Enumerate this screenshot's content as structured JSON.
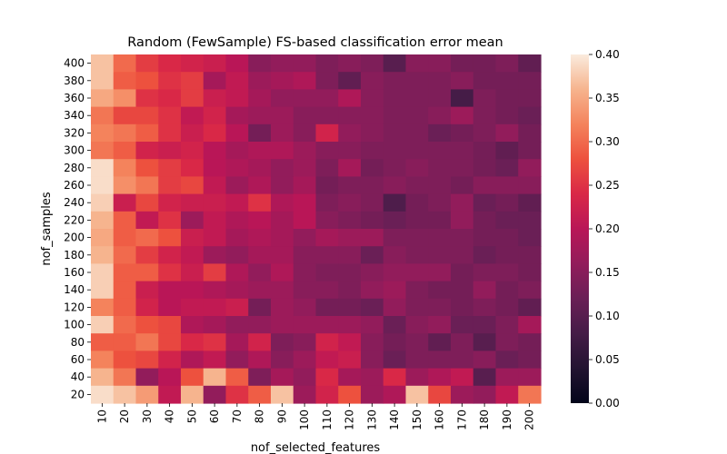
{
  "chart_data": {
    "type": "heatmap",
    "title": "Random (FewSample) FS-based classification error mean",
    "xlabel": "nof_selected_features",
    "ylabel": "nof_samples",
    "x_categories": [
      "10",
      "20",
      "30",
      "40",
      "50",
      "60",
      "70",
      "80",
      "90",
      "100",
      "110",
      "120",
      "130",
      "140",
      "150",
      "160",
      "170",
      "180",
      "190",
      "200"
    ],
    "y_categories": [
      "400",
      "380",
      "360",
      "340",
      "320",
      "300",
      "280",
      "260",
      "240",
      "220",
      "200",
      "180",
      "160",
      "140",
      "120",
      "100",
      "80",
      "60",
      "40",
      "20"
    ],
    "colorbar": {
      "vmin": 0.0,
      "vmax": 0.4,
      "ticks": [
        "0.00",
        "0.05",
        "0.10",
        "0.15",
        "0.20",
        "0.25",
        "0.30",
        "0.35",
        "0.40"
      ]
    },
    "values": [
      [
        0.37,
        0.3,
        0.26,
        0.24,
        0.23,
        0.22,
        0.2,
        0.15,
        0.16,
        0.16,
        0.14,
        0.15,
        0.14,
        0.1,
        0.15,
        0.15,
        0.13,
        0.13,
        0.14,
        0.11
      ],
      [
        0.37,
        0.29,
        0.28,
        0.25,
        0.26,
        0.18,
        0.21,
        0.17,
        0.18,
        0.19,
        0.14,
        0.11,
        0.15,
        0.14,
        0.14,
        0.14,
        0.15,
        0.13,
        0.13,
        0.13
      ],
      [
        0.35,
        0.33,
        0.25,
        0.24,
        0.26,
        0.22,
        0.21,
        0.18,
        0.16,
        0.16,
        0.16,
        0.19,
        0.15,
        0.14,
        0.14,
        0.14,
        0.08,
        0.14,
        0.13,
        0.13
      ],
      [
        0.31,
        0.27,
        0.27,
        0.25,
        0.21,
        0.23,
        0.18,
        0.17,
        0.17,
        0.15,
        0.15,
        0.15,
        0.15,
        0.14,
        0.14,
        0.15,
        0.17,
        0.14,
        0.13,
        0.12
      ],
      [
        0.32,
        0.31,
        0.29,
        0.25,
        0.22,
        0.24,
        0.2,
        0.13,
        0.17,
        0.15,
        0.23,
        0.16,
        0.15,
        0.14,
        0.14,
        0.12,
        0.13,
        0.14,
        0.16,
        0.13
      ],
      [
        0.31,
        0.29,
        0.23,
        0.22,
        0.23,
        0.2,
        0.18,
        0.19,
        0.19,
        0.17,
        0.15,
        0.15,
        0.14,
        0.14,
        0.14,
        0.14,
        0.14,
        0.13,
        0.11,
        0.13
      ],
      [
        0.39,
        0.32,
        0.28,
        0.26,
        0.24,
        0.2,
        0.19,
        0.18,
        0.16,
        0.17,
        0.14,
        0.18,
        0.13,
        0.14,
        0.15,
        0.14,
        0.14,
        0.13,
        0.12,
        0.16
      ],
      [
        0.39,
        0.33,
        0.31,
        0.26,
        0.27,
        0.21,
        0.17,
        0.19,
        0.16,
        0.18,
        0.13,
        0.14,
        0.14,
        0.15,
        0.14,
        0.14,
        0.13,
        0.15,
        0.15,
        0.15
      ],
      [
        0.38,
        0.22,
        0.27,
        0.23,
        0.22,
        0.22,
        0.21,
        0.25,
        0.19,
        0.2,
        0.14,
        0.15,
        0.14,
        0.09,
        0.13,
        0.14,
        0.16,
        0.12,
        0.13,
        0.11
      ],
      [
        0.36,
        0.29,
        0.21,
        0.25,
        0.17,
        0.21,
        0.19,
        0.2,
        0.18,
        0.2,
        0.15,
        0.14,
        0.13,
        0.12,
        0.13,
        0.13,
        0.16,
        0.13,
        0.12,
        0.12
      ],
      [
        0.35,
        0.29,
        0.3,
        0.28,
        0.22,
        0.21,
        0.18,
        0.19,
        0.18,
        0.16,
        0.18,
        0.17,
        0.17,
        0.14,
        0.14,
        0.14,
        0.14,
        0.13,
        0.13,
        0.12
      ],
      [
        0.36,
        0.3,
        0.26,
        0.23,
        0.21,
        0.17,
        0.16,
        0.18,
        0.18,
        0.15,
        0.15,
        0.15,
        0.12,
        0.15,
        0.14,
        0.14,
        0.14,
        0.12,
        0.13,
        0.13
      ],
      [
        0.38,
        0.29,
        0.29,
        0.25,
        0.22,
        0.26,
        0.19,
        0.16,
        0.19,
        0.15,
        0.14,
        0.14,
        0.15,
        0.16,
        0.16,
        0.16,
        0.13,
        0.14,
        0.14,
        0.13
      ],
      [
        0.38,
        0.29,
        0.22,
        0.2,
        0.2,
        0.19,
        0.18,
        0.17,
        0.17,
        0.15,
        0.15,
        0.14,
        0.16,
        0.17,
        0.14,
        0.13,
        0.13,
        0.16,
        0.13,
        0.14
      ],
      [
        0.32,
        0.29,
        0.23,
        0.2,
        0.21,
        0.21,
        0.22,
        0.13,
        0.17,
        0.16,
        0.13,
        0.13,
        0.12,
        0.16,
        0.14,
        0.14,
        0.13,
        0.14,
        0.13,
        0.11
      ],
      [
        0.38,
        0.3,
        0.28,
        0.27,
        0.19,
        0.18,
        0.16,
        0.16,
        0.17,
        0.17,
        0.17,
        0.17,
        0.16,
        0.12,
        0.15,
        0.16,
        0.12,
        0.12,
        0.14,
        0.18
      ],
      [
        0.29,
        0.29,
        0.31,
        0.27,
        0.24,
        0.25,
        0.18,
        0.23,
        0.14,
        0.15,
        0.23,
        0.21,
        0.15,
        0.13,
        0.14,
        0.11,
        0.14,
        0.1,
        0.14,
        0.13
      ],
      [
        0.32,
        0.28,
        0.27,
        0.23,
        0.19,
        0.21,
        0.16,
        0.19,
        0.15,
        0.17,
        0.21,
        0.22,
        0.15,
        0.12,
        0.14,
        0.14,
        0.14,
        0.15,
        0.12,
        0.13
      ],
      [
        0.36,
        0.31,
        0.16,
        0.2,
        0.28,
        0.36,
        0.29,
        0.14,
        0.18,
        0.16,
        0.24,
        0.18,
        0.17,
        0.24,
        0.17,
        0.19,
        0.21,
        0.1,
        0.17,
        0.17
      ],
      [
        0.39,
        0.37,
        0.34,
        0.21,
        0.36,
        0.16,
        0.25,
        0.29,
        0.37,
        0.17,
        0.23,
        0.28,
        0.17,
        0.19,
        0.37,
        0.27,
        0.17,
        0.16,
        0.21,
        0.31
      ]
    ]
  }
}
